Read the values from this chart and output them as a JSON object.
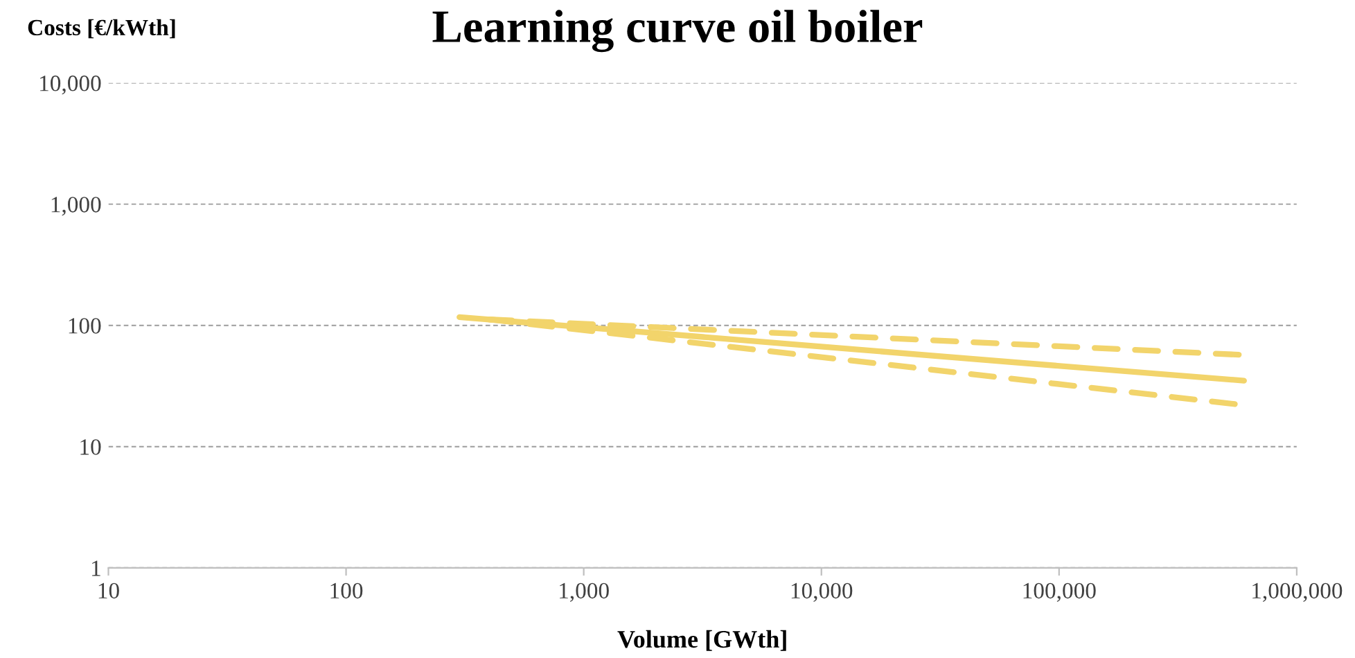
{
  "chart_data": {
    "type": "line",
    "title": "Learning curve oil boiler",
    "xlabel": "Volume [GWth]",
    "ylabel": "Costs [€/kWth]",
    "log": "xy",
    "grid": "y",
    "legend": false,
    "xlim": [
      10,
      1000000
    ],
    "ylim": [
      1,
      10000
    ],
    "xticks": [
      10,
      100,
      {
        "value": 1000,
        "label": "1,000"
      },
      {
        "value": 10000,
        "label": "10,000"
      },
      {
        "value": 100000,
        "label": "100,000"
      },
      {
        "value": 1000000,
        "label": "1,000,000"
      }
    ],
    "yticks": [
      1,
      10,
      100,
      {
        "value": 1000,
        "label": "1,000"
      },
      {
        "value": 10000,
        "label": "10,000"
      }
    ],
    "series": [
      {
        "color": "#f2d46b",
        "line_style": "solid",
        "x": [
          300,
          70000,
          600000
        ],
        "values": [
          117,
          49,
          35
        ]
      },
      {
        "color": "#f2d46b",
        "line_style": "dashed",
        "x": [
          400,
          600000
        ],
        "values": [
          112,
          57
        ]
      },
      {
        "color": "#f2d46b",
        "line_style": "dashed",
        "x": [
          400,
          600000
        ],
        "values": [
          112,
          22
        ]
      }
    ]
  }
}
